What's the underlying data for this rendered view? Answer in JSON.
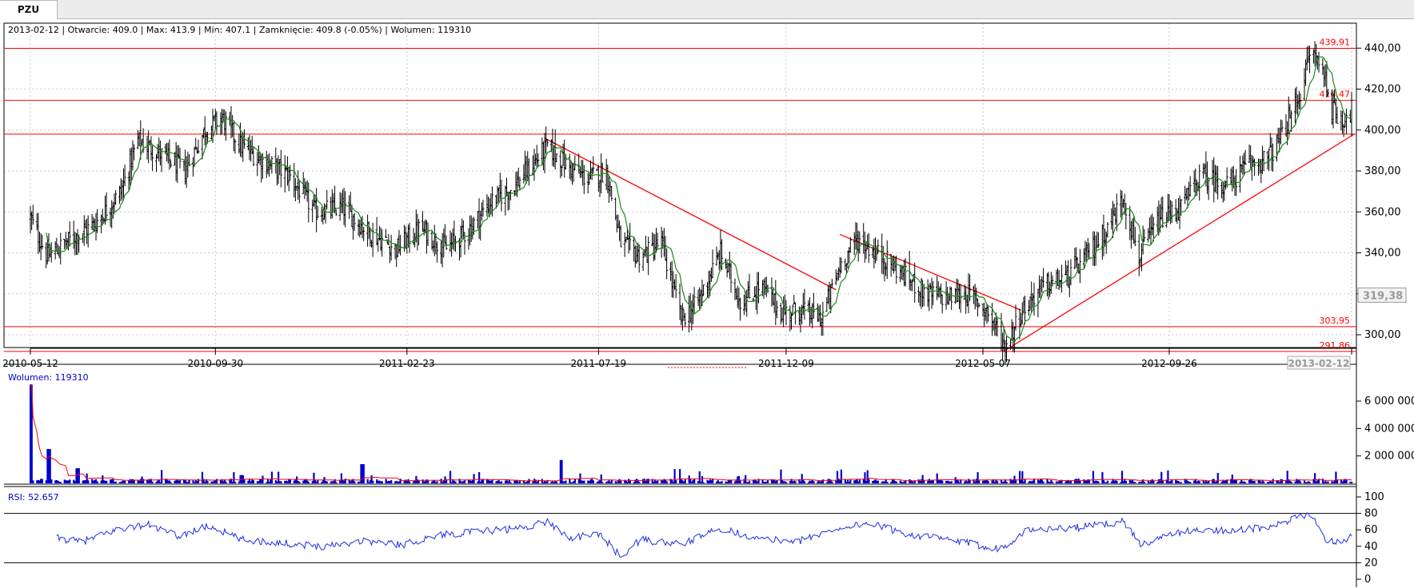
{
  "tab": {
    "label": "PZU"
  },
  "info": {
    "date": "2013-02-12",
    "open_label": "Otwarcie",
    "open": "409.0",
    "max_label": "Max",
    "max": "413.9",
    "min_label": "Min",
    "min": "407.1",
    "close_label": "Zamknięcie",
    "close": "409.8",
    "change": "(-0.05%)",
    "volume_label": "Wolumen",
    "volume": "119310"
  },
  "colors": {
    "candle": "#000000",
    "moving_average": "#1a8a1a",
    "support_resistance": "#ff0000",
    "volume": "#0000cc",
    "volume_ma": "#ff0000",
    "rsi": "#1f2fe0",
    "grid": "#c8c8c8",
    "axis_text": "#000000",
    "price_marker": "#999999"
  },
  "chart_data": [
    {
      "type": "candlestick",
      "title": "",
      "x_tick_labels": [
        "2010-05-12",
        "2010-09-30",
        "2011-02-23",
        "2011-07-19",
        "2011-12-09",
        "2012-05-07",
        "2012-09-26",
        "2013-02-12"
      ],
      "x_range": [
        "2010-05-12",
        "2013-02-12"
      ],
      "y_ticks": [
        300,
        320,
        340,
        360,
        380,
        400,
        420,
        440
      ],
      "y_tick_labels": [
        "300,00",
        "320,00",
        "340,00",
        "360,00",
        "380,00",
        "400,00",
        "420,00",
        "440,00"
      ],
      "ylim": [
        284,
        444
      ],
      "grid": true,
      "price_marker": "319,38",
      "last_candle": {
        "date": "2013-02-12",
        "open": 409.0,
        "high": 413.9,
        "low": 407.1,
        "close": 409.8
      },
      "horizontal_levels": [
        {
          "value": 439.91,
          "label": "439,91"
        },
        {
          "value": 414.47,
          "label": "414,47"
        },
        {
          "value": 398.0,
          "label": ""
        },
        {
          "value": 303.95,
          "label": "303,95"
        },
        {
          "value": 291.86,
          "label": "291,86"
        }
      ],
      "trendlines": [
        {
          "from": [
            "2011-06-08",
            396
          ],
          "to": [
            "2012-01-16",
            322
          ]
        },
        {
          "from": [
            "2012-01-19",
            349
          ],
          "to": [
            "2012-06-05",
            312
          ]
        },
        {
          "from": [
            "2012-05-23",
            292
          ],
          "to": [
            "2013-02-14",
            398
          ]
        }
      ],
      "price_path": [
        [
          "2010-05-12",
          357
        ],
        [
          "2010-05-25",
          338
        ],
        [
          "2010-06-10",
          346
        ],
        [
          "2010-06-30",
          354
        ],
        [
          "2010-07-20",
          370
        ],
        [
          "2010-08-02",
          395
        ],
        [
          "2010-08-20",
          388
        ],
        [
          "2010-09-07",
          380
        ],
        [
          "2010-09-22",
          400
        ],
        [
          "2010-10-05",
          406
        ],
        [
          "2010-10-20",
          392
        ],
        [
          "2010-11-05",
          385
        ],
        [
          "2010-11-25",
          378
        ],
        [
          "2010-12-15",
          360
        ],
        [
          "2011-01-05",
          362
        ],
        [
          "2011-01-25",
          350
        ],
        [
          "2011-02-15",
          342
        ],
        [
          "2011-03-05",
          352
        ],
        [
          "2011-03-25",
          342
        ],
        [
          "2011-04-12",
          352
        ],
        [
          "2011-04-28",
          365
        ],
        [
          "2011-05-15",
          372
        ],
        [
          "2011-06-01",
          385
        ],
        [
          "2011-06-10",
          392
        ],
        [
          "2011-06-25",
          383
        ],
        [
          "2011-07-10",
          376
        ],
        [
          "2011-07-25",
          380
        ],
        [
          "2011-08-05",
          345
        ],
        [
          "2011-08-20",
          338
        ],
        [
          "2011-09-05",
          345
        ],
        [
          "2011-09-20",
          308
        ],
        [
          "2011-10-01",
          314
        ],
        [
          "2011-10-20",
          340
        ],
        [
          "2011-11-05",
          315
        ],
        [
          "2011-11-20",
          324
        ],
        [
          "2011-12-05",
          311
        ],
        [
          "2011-12-20",
          312
        ],
        [
          "2012-01-05",
          308
        ],
        [
          "2012-01-20",
          335
        ],
        [
          "2012-02-01",
          347
        ],
        [
          "2012-02-20",
          338
        ],
        [
          "2012-03-10",
          328
        ],
        [
          "2012-03-25",
          320
        ],
        [
          "2012-04-10",
          318
        ],
        [
          "2012-04-25",
          320
        ],
        [
          "2012-05-10",
          312
        ],
        [
          "2012-05-24",
          294
        ],
        [
          "2012-06-05",
          311
        ],
        [
          "2012-06-20",
          323
        ],
        [
          "2012-07-10",
          328
        ],
        [
          "2012-07-25",
          338
        ],
        [
          "2012-08-10",
          352
        ],
        [
          "2012-08-22",
          367
        ],
        [
          "2012-09-03",
          338
        ],
        [
          "2012-09-18",
          356
        ],
        [
          "2012-10-05",
          362
        ],
        [
          "2012-10-20",
          378
        ],
        [
          "2012-11-10",
          373
        ],
        [
          "2012-11-25",
          383
        ],
        [
          "2012-12-10",
          386
        ],
        [
          "2012-12-20",
          396
        ],
        [
          "2013-01-05",
          420
        ],
        [
          "2013-01-12",
          440
        ],
        [
          "2013-01-22",
          428
        ],
        [
          "2013-01-28",
          410
        ],
        [
          "2013-02-05",
          405
        ],
        [
          "2013-02-12",
          409.8
        ]
      ]
    },
    {
      "type": "bar",
      "title": "Wolumen: 119310",
      "series_name": "Wolumen",
      "last_value": 119310,
      "y_ticks": [
        2000000,
        4000000,
        6000000
      ],
      "y_tick_labels": [
        "2 000 000",
        "4 000 000",
        "6 000 000"
      ],
      "ylim": [
        0,
        7400000
      ],
      "peaks": [
        [
          "2010-05-12",
          7200000
        ],
        [
          "2010-05-26",
          2500000
        ],
        [
          "2010-06-17",
          1100000
        ],
        [
          "2010-10-20",
          600000
        ],
        [
          "2011-01-20",
          1400000
        ],
        [
          "2011-06-20",
          1700000
        ],
        [
          "2012-06-03",
          900000
        ],
        [
          "2013-02-12",
          119310
        ]
      ]
    },
    {
      "type": "line",
      "title": "RSI: 52.657",
      "series_name": "RSI",
      "last_value": 52.657,
      "y_ticks": [
        0,
        20,
        40,
        60,
        80,
        100
      ],
      "y_tick_labels": [
        "0",
        "20",
        "40",
        "60",
        "80",
        "100"
      ],
      "ylim": [
        0,
        100
      ],
      "reference_lines": [
        20,
        80
      ],
      "points": [
        [
          "2010-06-01",
          50
        ],
        [
          "2010-06-20",
          45
        ],
        [
          "2010-07-20",
          62
        ],
        [
          "2010-08-10",
          66
        ],
        [
          "2010-09-01",
          52
        ],
        [
          "2010-09-25",
          65
        ],
        [
          "2010-10-20",
          48
        ],
        [
          "2010-11-20",
          44
        ],
        [
          "2010-12-20",
          40
        ],
        [
          "2011-01-20",
          47
        ],
        [
          "2011-02-20",
          42
        ],
        [
          "2011-03-20",
          54
        ],
        [
          "2011-04-20",
          58
        ],
        [
          "2011-05-20",
          62
        ],
        [
          "2011-06-10",
          70
        ],
        [
          "2011-06-28",
          50
        ],
        [
          "2011-07-20",
          55
        ],
        [
          "2011-08-05",
          27
        ],
        [
          "2011-08-20",
          48
        ],
        [
          "2011-09-20",
          42
        ],
        [
          "2011-10-20",
          62
        ],
        [
          "2011-11-20",
          48
        ],
        [
          "2011-12-20",
          47
        ],
        [
          "2012-01-20",
          63
        ],
        [
          "2012-02-10",
          68
        ],
        [
          "2012-03-10",
          55
        ],
        [
          "2012-04-10",
          48
        ],
        [
          "2012-05-20",
          37
        ],
        [
          "2012-06-10",
          60
        ],
        [
          "2012-07-20",
          63
        ],
        [
          "2012-08-22",
          70
        ],
        [
          "2012-09-05",
          42
        ],
        [
          "2012-10-05",
          58
        ],
        [
          "2012-11-10",
          60
        ],
        [
          "2012-12-10",
          62
        ],
        [
          "2013-01-12",
          80
        ],
        [
          "2013-01-25",
          45
        ],
        [
          "2013-02-05",
          47
        ],
        [
          "2013-02-12",
          52.657
        ]
      ]
    }
  ]
}
